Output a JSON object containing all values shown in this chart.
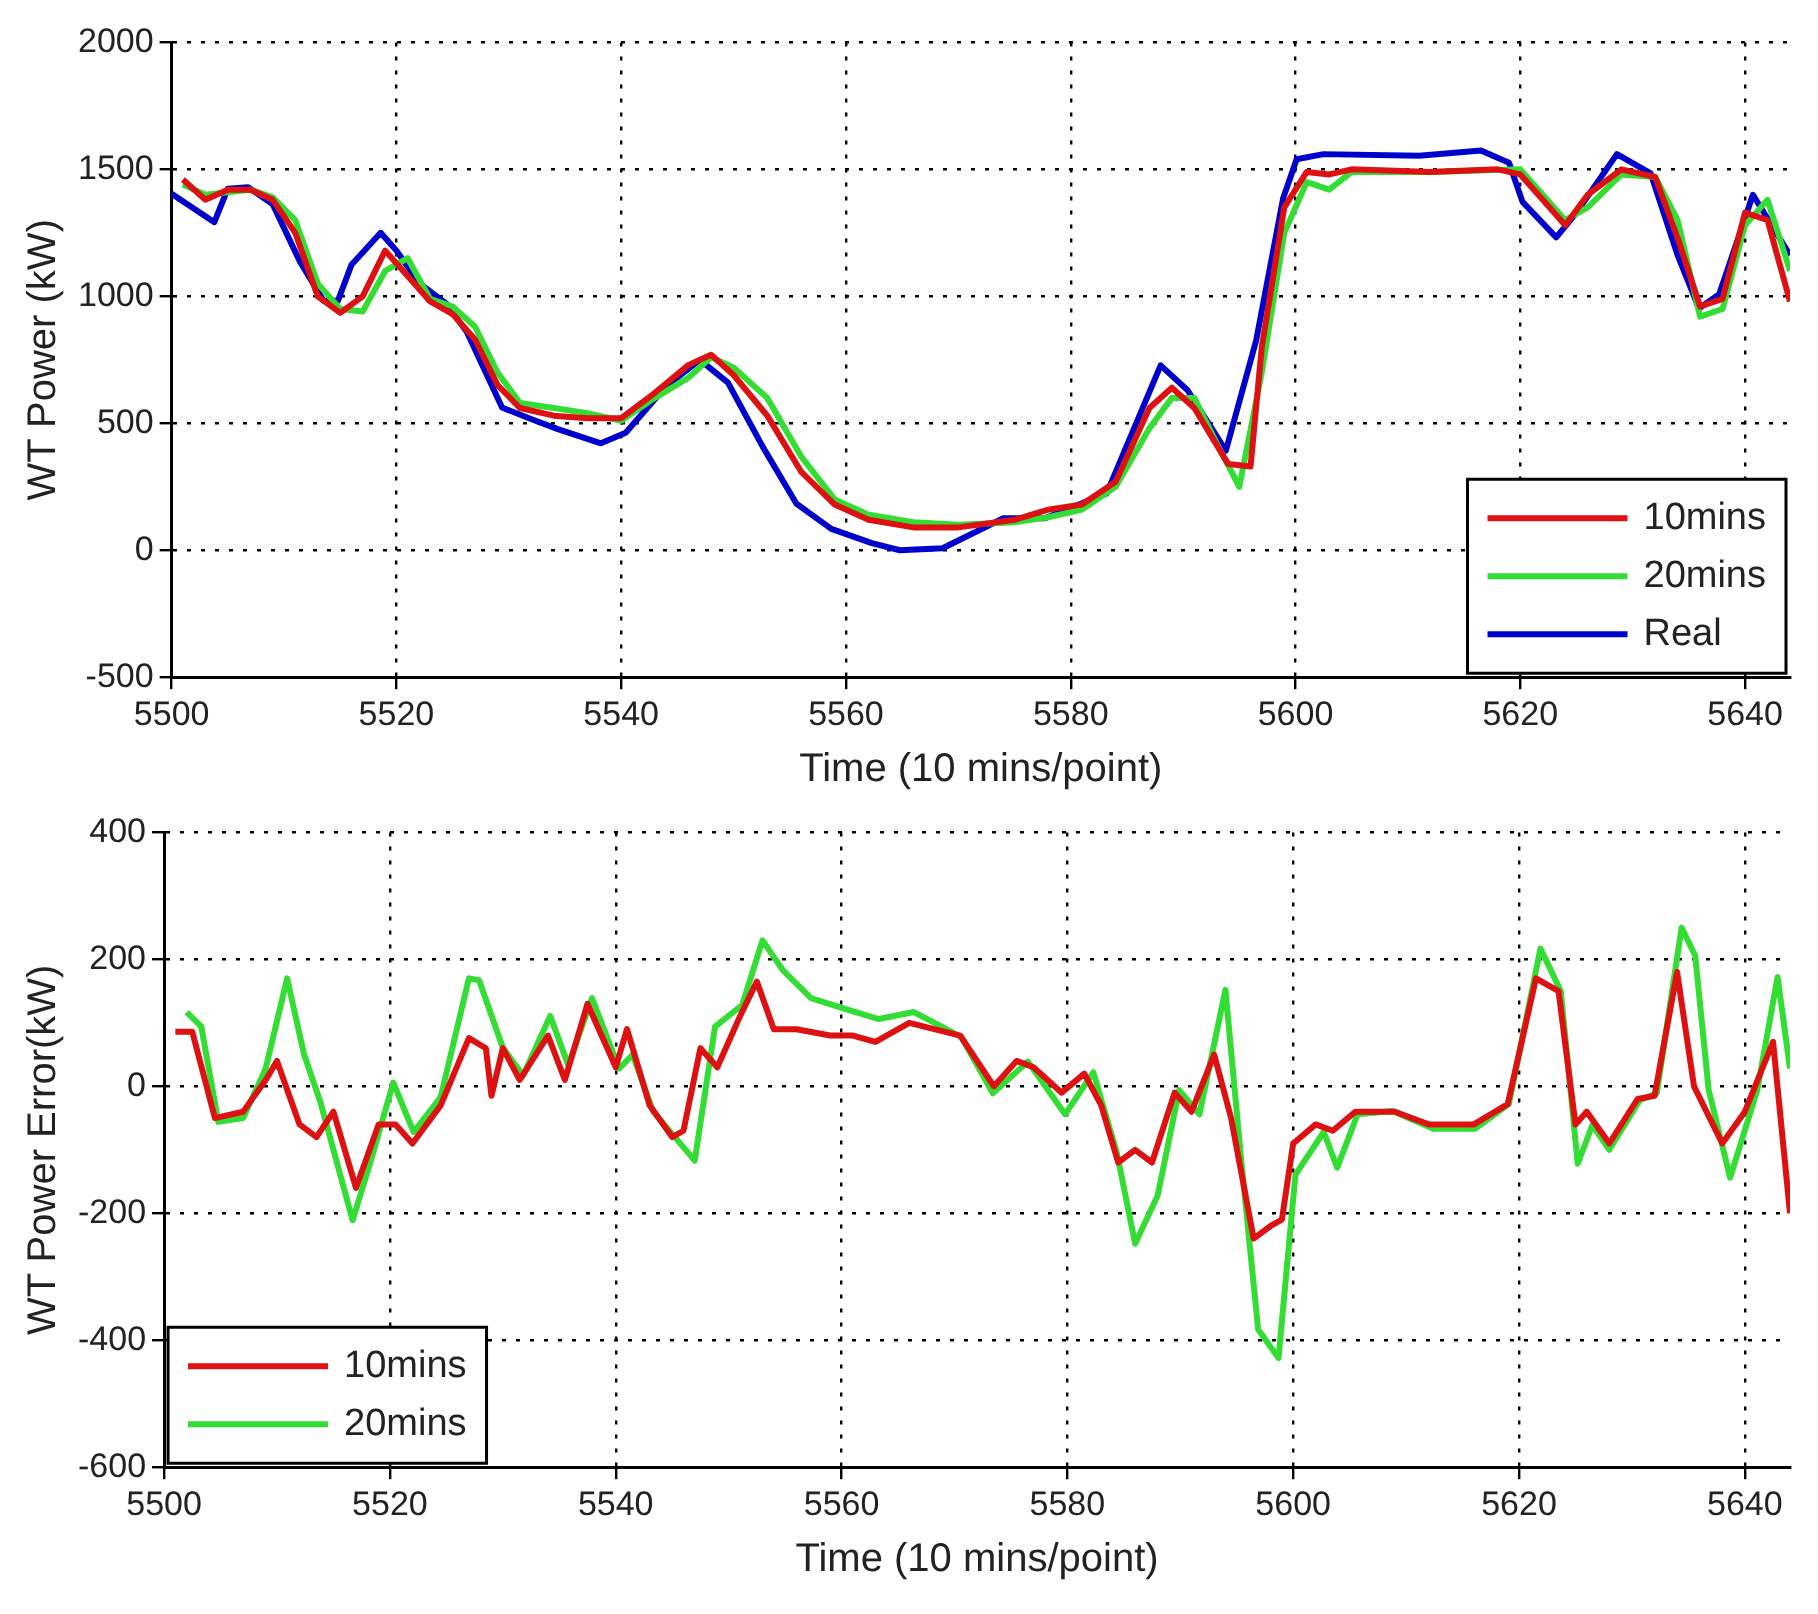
{
  "chart_data": [
    {
      "type": "line",
      "xlabel": "Time (10 mins/point)",
      "ylabel": "WT Power (kW)",
      "xlim": [
        5500,
        5644
      ],
      "xticks": [
        5500,
        5520,
        5540,
        5560,
        5580,
        5600,
        5620,
        5640
      ],
      "ylim": [
        -500,
        2000
      ],
      "yticks": [
        -500,
        0,
        500,
        1000,
        1500,
        2000
      ],
      "grid": true,
      "legend": "bottom right",
      "marker": "none",
      "line_style": "solid",
      "series": [
        {
          "name": "10mins",
          "color": "#dd1111",
          "x": [
            5501,
            5503,
            5505,
            5507,
            5509,
            5511,
            5513,
            5515,
            5517,
            5519,
            5521,
            5523,
            5525,
            5527,
            5529,
            5531,
            5534,
            5537,
            5540,
            5543,
            5546,
            5548,
            5550,
            5553,
            5556,
            5559,
            5562,
            5566,
            5570,
            5575,
            5578,
            5581,
            5584,
            5587,
            5589,
            5591,
            5594,
            5596,
            5597,
            5599,
            5601,
            5603,
            5605,
            5612,
            5618,
            5620,
            5622,
            5624,
            5626,
            5629,
            5632,
            5634,
            5636,
            5638,
            5640,
            5642,
            5644
          ],
          "values": [
            1460,
            1380,
            1420,
            1420,
            1380,
            1250,
            1000,
            935,
            1000,
            1180,
            1080,
            980,
            930,
            830,
            650,
            560,
            530,
            520,
            520,
            620,
            730,
            770,
            690,
            530,
            310,
            180,
            120,
            90,
            90,
            120,
            160,
            180,
            270,
            560,
            640,
            560,
            340,
            330,
            800,
            1350,
            1490,
            1480,
            1500,
            1490,
            1500,
            1480,
            1380,
            1280,
            1400,
            1500,
            1470,
            1230,
            960,
            990,
            1330,
            1300,
            980
          ]
        },
        {
          "name": "20mins",
          "color": "#33dd33",
          "x": [
            5501,
            5503,
            5505,
            5507,
            5509,
            5511,
            5513,
            5515,
            5517,
            5519,
            5521,
            5523,
            5525,
            5527,
            5529,
            5531,
            5534,
            5537,
            5540,
            5543,
            5546,
            5548,
            5550,
            5553,
            5556,
            5559,
            5562,
            5566,
            5570,
            5575,
            5578,
            5581,
            5584,
            5587,
            5589,
            5591,
            5593,
            5595,
            5597,
            5599,
            5601,
            5603,
            5605,
            5612,
            5620,
            5622,
            5624,
            5626,
            5629,
            5632,
            5634,
            5636,
            5638,
            5640,
            5642,
            5644
          ],
          "values": [
            1440,
            1400,
            1410,
            1420,
            1390,
            1300,
            1050,
            950,
            940,
            1100,
            1150,
            990,
            960,
            880,
            700,
            580,
            560,
            540,
            510,
            600,
            680,
            760,
            720,
            600,
            370,
            200,
            140,
            110,
            100,
            110,
            130,
            160,
            250,
            480,
            600,
            600,
            420,
            250,
            700,
            1250,
            1450,
            1420,
            1490,
            1490,
            1500,
            1400,
            1300,
            1350,
            1480,
            1470,
            1300,
            920,
            950,
            1280,
            1380,
            1100
          ]
        },
        {
          "name": "Real",
          "color": "#0000cc",
          "x": [
            5500,
            5503.8,
            5505,
            5506.8,
            5509,
            5511.4,
            5513.5,
            5514.8,
            5516,
            5518.6,
            5520,
            5522,
            5524.5,
            5526.3,
            5529.4,
            5531.8,
            5534.3,
            5538.2,
            5540.4,
            5544,
            5547,
            5549.5,
            5552.6,
            5555.6,
            5558.7,
            5562.3,
            5564.8,
            5568.6,
            5574,
            5577.7,
            5583.2,
            5588,
            5590.4,
            5593.8,
            5596.5,
            5598.9,
            5600.1,
            5602.5,
            5611,
            5616.5,
            5619,
            5620.2,
            5623.2,
            5625,
            5628.6,
            5631.6,
            5634,
            5635.9,
            5637.7,
            5640.7,
            5644
          ],
          "values": [
            1404,
            1292,
            1424,
            1430,
            1362,
            1138,
            983,
            983,
            1124,
            1250,
            1180,
            1053,
            969,
            857,
            562,
            520,
            478,
            421,
            463,
            646,
            750,
            660,
            407,
            183,
            84,
            28,
            0,
            8,
            126,
            126,
            224,
            728,
            630,
            392,
            826,
            1386,
            1540,
            1560,
            1554,
            1574,
            1526,
            1372,
            1232,
            1330,
            1560,
            1484,
            1162,
            952,
            1008,
            1400,
            1162
          ]
        }
      ]
    },
    {
      "type": "line",
      "xlabel": "Time (10 mins/point)",
      "ylabel": "WT Power Error(kW)",
      "xlim": [
        5500,
        5644
      ],
      "xticks": [
        5500,
        5520,
        5540,
        5560,
        5580,
        5600,
        5620,
        5640
      ],
      "ylim": [
        -600,
        400
      ],
      "yticks": [
        -600,
        -400,
        -200,
        0,
        200,
        400
      ],
      "grid": true,
      "legend": "bottom left",
      "marker": "none",
      "line_style": "solid",
      "series": [
        {
          "name": "10mins",
          "color": "#dd1111",
          "x": [
            5501,
            5502.5,
            5504.5,
            5507,
            5509,
            5510,
            5512,
            5513.5,
            5515,
            5517,
            5519,
            5520.5,
            5522,
            5524.5,
            5527,
            5528.5,
            5529,
            5530,
            5531.5,
            5534,
            5535.5,
            5537.5,
            5540,
            5541,
            5543,
            5545,
            5546,
            5547.5,
            5549,
            5551,
            5552.5,
            5554,
            5556,
            5559,
            5561,
            5563,
            5566,
            5570.5,
            5573.5,
            5575.5,
            5577,
            5579.5,
            5581.5,
            5583,
            5584.5,
            5586,
            5587.5,
            5589.5,
            5591,
            5593,
            5594.5,
            5596.5,
            5598,
            5599,
            5600,
            5602,
            5603.5,
            5605.5,
            5609,
            5612,
            5616,
            5619,
            5621.5,
            5623.5,
            5625,
            5626,
            5628,
            5630.5,
            5632,
            5634,
            5635.5,
            5638,
            5640,
            5642.5,
            5644
          ],
          "values": [
            86,
            86,
            -50,
            -40,
            10,
            40,
            -60,
            -80,
            -40,
            -160,
            -60,
            -60,
            -90,
            -30,
            76,
            60,
            -15,
            60,
            10,
            80,
            10,
            130,
            30,
            90,
            -30,
            -80,
            -70,
            60,
            30,
            110,
            165,
            90,
            90,
            80,
            80,
            70,
            100,
            80,
            0,
            40,
            30,
            -10,
            20,
            -30,
            -120,
            -100,
            -120,
            -10,
            -40,
            50,
            -50,
            -240,
            -220,
            -210,
            -90,
            -60,
            -70,
            -40,
            -40,
            -60,
            -60,
            -28,
            170,
            150,
            -60,
            -40,
            -90,
            -20,
            -15,
            180,
            0,
            -90,
            -40,
            70,
            -200
          ]
        },
        {
          "name": "20mins",
          "color": "#33dd33",
          "x": [
            5502,
            5503.3,
            5504.8,
            5507,
            5509,
            5510.9,
            5512.4,
            5513.9,
            5516.7,
            5518.5,
            5520.3,
            5522.1,
            5524.5,
            5527,
            5527.9,
            5530,
            5531.8,
            5534.2,
            5535.8,
            5537.9,
            5540.3,
            5541.5,
            5543.3,
            5547,
            5548.8,
            5551.2,
            5553,
            5554.8,
            5557.3,
            5560.3,
            5563.3,
            5566.4,
            5570.6,
            5573.4,
            5576.5,
            5579.8,
            5582.3,
            5584.4,
            5586,
            5588,
            5589.9,
            5591.7,
            5594,
            5595.4,
            5596.9,
            5598.7,
            5600.2,
            5602.7,
            5603.9,
            5605.7,
            5608.8,
            5612.4,
            5616.1,
            5619.1,
            5621.9,
            5623.7,
            5625.2,
            5626.5,
            5628,
            5630.7,
            5632.2,
            5634.4,
            5635.6,
            5636.8,
            5638.7,
            5641.1,
            5642.9,
            5644
          ],
          "values": [
            117,
            94,
            -56,
            -50,
            28,
            170,
            50,
            -28,
            -211,
            -106,
            6,
            -72,
            -17,
            170,
            167,
            61,
            17,
            111,
            33,
            139,
            28,
            50,
            -39,
            -117,
            94,
            128,
            230,
            183,
            139,
            122,
            106,
            117,
            78,
            -11,
            39,
            -44,
            22,
            -106,
            -248,
            -172,
            -6,
            -44,
            152,
            -117,
            -383,
            -428,
            -139,
            -72,
            -128,
            -44,
            -39,
            -67,
            -67,
            -28,
            217,
            150,
            -122,
            -61,
            -100,
            -22,
            -11,
            250,
            206,
            -6,
            -144,
            -6,
            172,
            28
          ]
        }
      ]
    }
  ]
}
